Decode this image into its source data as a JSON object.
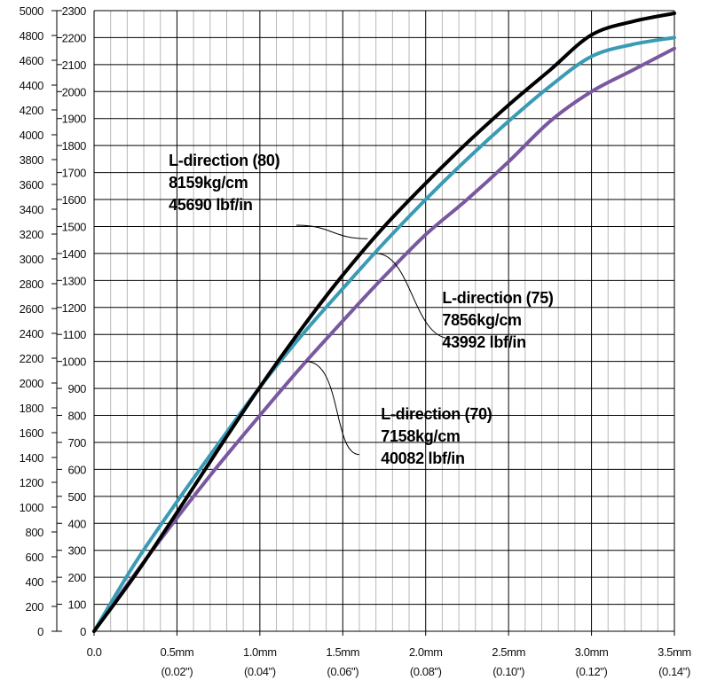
{
  "chart_data": {
    "type": "line",
    "x_unit": "mm",
    "xlim": [
      0,
      3.5
    ],
    "ylim_inner": [
      0,
      2300
    ],
    "ylim_outer": [
      0,
      5000
    ],
    "x_ticks": [
      {
        "value": 0.0,
        "label": "0.0",
        "sub": ""
      },
      {
        "value": 0.5,
        "label": "0.5mm",
        "sub": "(0.02\")"
      },
      {
        "value": 1.0,
        "label": "1.0mm",
        "sub": "(0.04\")"
      },
      {
        "value": 1.5,
        "label": "1.5mm",
        "sub": "(0.06\")"
      },
      {
        "value": 2.0,
        "label": "2.0mm",
        "sub": "(0.08\")"
      },
      {
        "value": 2.5,
        "label": "2.5mm",
        "sub": "(0.10\")"
      },
      {
        "value": 3.0,
        "label": "3.0mm",
        "sub": "(0.12\")"
      },
      {
        "value": 3.5,
        "label": "3.5mm",
        "sub": "(0.14\")"
      }
    ],
    "y_inner_ticks": [
      "0",
      "100",
      "200",
      "300",
      "400",
      "500",
      "600",
      "700",
      "800",
      "900",
      "1000",
      "1100",
      "1200",
      "1300",
      "1400",
      "1500",
      "1600",
      "1700",
      "1800",
      "1900",
      "2000",
      "2100",
      "2200",
      "2300"
    ],
    "y_outer_ticks": [
      "0",
      "200",
      "400",
      "600",
      "800",
      "1000",
      "1200",
      "1400",
      "1600",
      "1800",
      "2000",
      "2200",
      "2400",
      "2600",
      "2800",
      "3000",
      "3200",
      "3400",
      "3600",
      "3800",
      "4000",
      "4200",
      "4400",
      "4600",
      "4800",
      "5000"
    ],
    "grid": true,
    "series": [
      {
        "name": "L-direction (80)",
        "color": "#000000",
        "x": [
          0,
          0.25,
          0.5,
          0.75,
          1.0,
          1.25,
          1.5,
          1.75,
          2.0,
          2.25,
          2.5,
          2.75,
          3.0,
          3.25,
          3.5
        ],
        "y": [
          0,
          210,
          440,
          675,
          905,
          1120,
          1320,
          1500,
          1660,
          1810,
          1950,
          2080,
          2210,
          2260,
          2290
        ]
      },
      {
        "name": "L-direction (75)",
        "color": "#3a9bb4",
        "x": [
          0,
          0.25,
          0.5,
          0.75,
          1.0,
          1.25,
          1.5,
          1.75,
          2.0,
          2.25,
          2.5,
          2.75,
          3.0,
          3.25,
          3.5
        ],
        "y": [
          0,
          255,
          480,
          695,
          905,
          1095,
          1270,
          1440,
          1600,
          1750,
          1890,
          2020,
          2130,
          2175,
          2200
        ]
      },
      {
        "name": "L-direction (70)",
        "color": "#7a58a0",
        "x": [
          0,
          0.25,
          0.5,
          0.75,
          1.0,
          1.25,
          1.5,
          1.75,
          2.0,
          2.25,
          2.5,
          2.75,
          3.0,
          3.25,
          3.5
        ],
        "y": [
          0,
          215,
          420,
          615,
          800,
          980,
          1150,
          1315,
          1470,
          1600,
          1740,
          1890,
          2000,
          2080,
          2160
        ]
      }
    ],
    "annotations": [
      {
        "series_index": 0,
        "lines": [
          "L-direction (80)",
          "8159kg/cm",
          "45690 lbf/in"
        ],
        "anchor_x": 1.65,
        "anchor_y": 1455,
        "text_x": 0.45,
        "text_y": 1725,
        "leader_end_x": 1.22,
        "leader_end_y": 1505
      },
      {
        "series_index": 1,
        "lines": [
          "L-direction (75)",
          "7856kg/cm",
          "43992 lbf/in"
        ],
        "anchor_x": 1.7,
        "anchor_y": 1400,
        "text_x": 2.1,
        "text_y": 1215,
        "leader_end_x": 2.15,
        "leader_end_y": 1085
      },
      {
        "series_index": 2,
        "lines": [
          "L-direction (70)",
          "7158kg/cm",
          "40082 lbf/in"
        ],
        "anchor_x": 1.28,
        "anchor_y": 1000,
        "text_x": 1.73,
        "text_y": 785,
        "leader_end_x": 1.6,
        "leader_end_y": 655
      }
    ]
  }
}
